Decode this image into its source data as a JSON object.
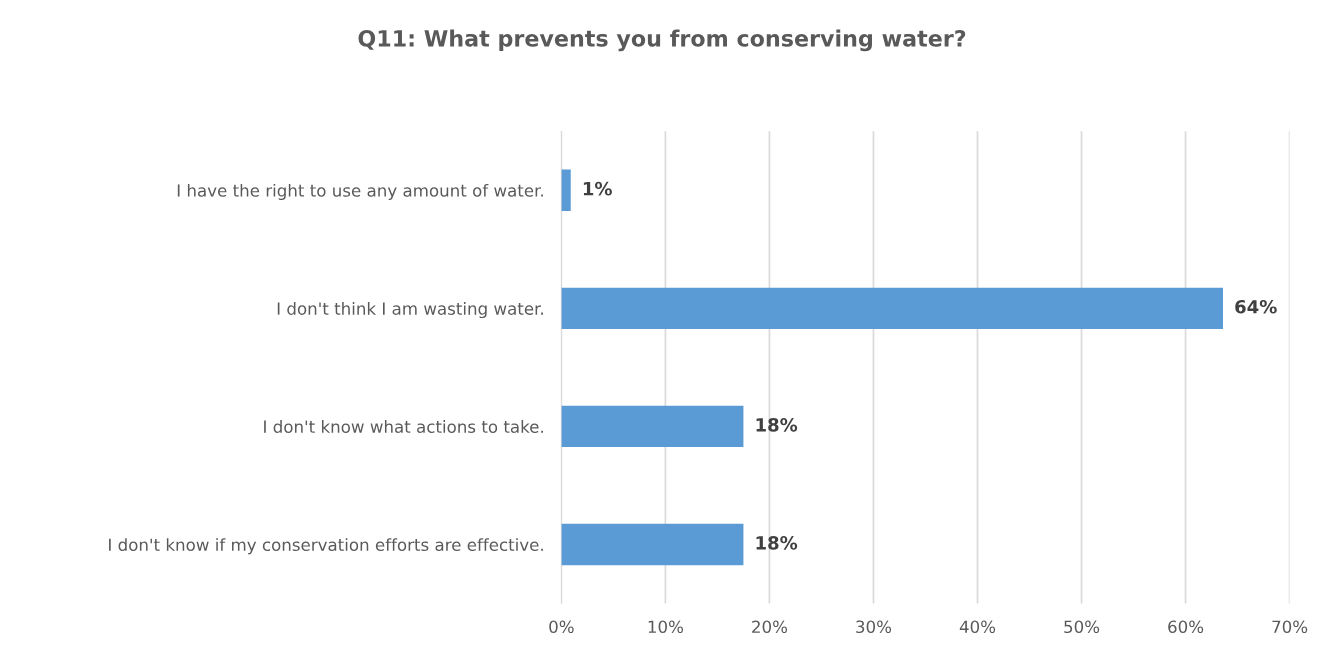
{
  "chart_data": {
    "type": "bar",
    "orientation": "horizontal",
    "title": "Q11: What prevents you from conserving water?",
    "categories": [
      "I have the right to use any amount of water.",
      "I don't think I am wasting water.",
      "I don't know what actions to take.",
      "I don't know if my conservation efforts are effective."
    ],
    "values": [
      0.9,
      63.6,
      17.5,
      17.5
    ],
    "value_labels": [
      "1%",
      "64%",
      "18%",
      "18%"
    ],
    "color": "#5b9bd5",
    "xlim": [
      0,
      70
    ],
    "xticks": [
      {
        "value": 0,
        "label": "0%"
      },
      {
        "value": 10,
        "label": "10%"
      },
      {
        "value": 20,
        "label": "20%"
      },
      {
        "value": 30,
        "label": "30%"
      },
      {
        "value": 40,
        "label": "40%"
      },
      {
        "value": 50,
        "label": "50%"
      },
      {
        "value": 60,
        "label": "60%"
      },
      {
        "value": 70,
        "label": "70%"
      }
    ],
    "grid": "x",
    "legend": false
  }
}
